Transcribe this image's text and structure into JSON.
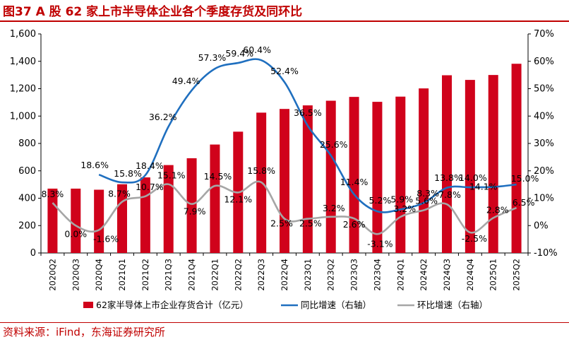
{
  "title": "图37  A 股 62 家上市半导体企业各个季度存货及同环比",
  "source": "资料来源：iFind，东海证券研究所",
  "colors": {
    "bar": "#d0021b",
    "yoy": "#1f6fbf",
    "qoq": "#a6a6a6",
    "accent": "#c00000",
    "axis": "#000000"
  },
  "chart_data": {
    "type": "bar",
    "categories": [
      "2020Q2",
      "2020Q3",
      "2020Q4",
      "2021Q1",
      "2021Q2",
      "2021Q3",
      "2021Q4",
      "2022Q1",
      "2022Q2",
      "2022Q3",
      "2022Q4",
      "2023Q1",
      "2023Q2",
      "2023Q3",
      "2023Q4",
      "2024Q1",
      "2024Q2",
      "2024Q3",
      "2024Q4",
      "2025Q1",
      "2025Q2"
    ],
    "y_left": {
      "ylim": [
        0,
        1600
      ],
      "ticks": [
        0,
        200,
        400,
        600,
        800,
        1000,
        1200,
        1400,
        1600
      ],
      "tick_labels": [
        "0",
        "200",
        "400",
        "600",
        "800",
        "1,000",
        "1,200",
        "1,400",
        "1,600"
      ]
    },
    "y_right": {
      "ylim": [
        -10,
        70
      ],
      "ticks": [
        -10,
        0,
        10,
        20,
        30,
        40,
        50,
        60,
        70
      ],
      "tick_labels": [
        "-10%",
        "0%",
        "10%",
        "20%",
        "30%",
        "40%",
        "50%",
        "60%",
        "70%"
      ]
    },
    "series": [
      {
        "name": "62家半导体上市企业存货合计（亿元）",
        "type": "bar",
        "axis": "left",
        "values": [
          470,
          470,
          462,
          502,
          552,
          642,
          692,
          792,
          886,
          1025,
          1052,
          1078,
          1112,
          1140,
          1104,
          1142,
          1202,
          1298,
          1264,
          1300,
          1382
        ]
      },
      {
        "name": "同比增速（右轴）",
        "type": "line",
        "axis": "right",
        "values": [
          null,
          null,
          18.6,
          15.8,
          18.4,
          36.2,
          49.4,
          57.3,
          59.4,
          60.4,
          52.4,
          36.5,
          25.6,
          11.4,
          5.2,
          5.9,
          8.3,
          13.8,
          14.0,
          14.1,
          15.0
        ],
        "labels": [
          "",
          "",
          "18.6%",
          "15.8%",
          "18.4%",
          "36.2%",
          "49.4%",
          "57.3%",
          "59.4%",
          "60.4%",
          "52.4%",
          "36.5%",
          "25.6%",
          "11.4%",
          "5.2%",
          "5.9%",
          "8.3%",
          "13.8%",
          "14.0%",
          "14.1%",
          "15.0%"
        ]
      },
      {
        "name": "环比增速（右轴）",
        "type": "line",
        "axis": "right",
        "values": [
          8.3,
          0.0,
          -1.6,
          8.7,
          10.7,
          15.1,
          7.9,
          14.5,
          12.1,
          15.8,
          2.5,
          2.5,
          3.2,
          2.6,
          -3.1,
          3.2,
          5.6,
          7.8,
          -2.5,
          2.8,
          6.5
        ],
        "labels": [
          "8.3%",
          "0.0%",
          "-1.6%",
          "8.7%",
          "10.7%",
          "15.1%",
          "7.9%",
          "14.5%",
          "12.1%",
          "15.8%",
          "2.5%",
          "2.5%",
          "3.2%",
          "2.6%",
          "-3.1%",
          "3.2%",
          "5.6%",
          "7.8%",
          "-2.5%",
          "2.8%",
          "6.5%"
        ]
      }
    ],
    "legend": {
      "position": "bottom",
      "items": [
        "62家半导体上市企业存货合计（亿元）",
        "同比增速（右轴）",
        "环比增速（右轴）"
      ]
    }
  }
}
